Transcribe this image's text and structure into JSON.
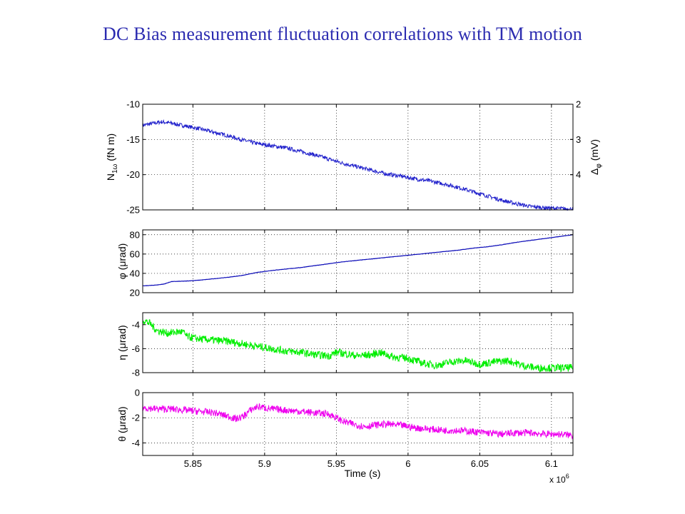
{
  "title": "DC Bias measurement  fluctuation correlations with TM motion",
  "chart_data": [
    {
      "type": "line",
      "ylabel": "N1ω (fN m)",
      "ylabel_parts": {
        "base": "N",
        "sub": "1ω",
        "unit": " (fN m)"
      },
      "ylabel_right": "Δφ (mV)",
      "ylabel_right_parts": {
        "base": "Δ",
        "sub": "φ",
        "unit": " (mV)"
      },
      "xlim": [
        5815000,
        6115000
      ],
      "ylim": [
        -25,
        -10
      ],
      "yticks": [
        -25,
        -20,
        -15,
        -10
      ],
      "ytick_labels": [
        "-25",
        "-20",
        "-15",
        "-10"
      ],
      "ylim_right": [
        2,
        5
      ],
      "yticks_right": [
        2,
        3,
        4
      ],
      "ytick_labels_right": [
        "2",
        "3",
        "4"
      ],
      "color": "#2222cc",
      "noise": 0.28,
      "grid": true,
      "series": [
        {
          "x": [
            5815000,
            5820000,
            5828000,
            5835000,
            5845000,
            5855000,
            5865000,
            5875000,
            5885000,
            5895000,
            5905000,
            5915000,
            5925000,
            5935000,
            5945000,
            5955000,
            5965000,
            5975000,
            5985000,
            5995000,
            6005000,
            6015000,
            6025000,
            6035000,
            6045000,
            6055000,
            6065000,
            6075000,
            6085000,
            6095000,
            6105000,
            6115000
          ],
          "y": [
            -13.0,
            -12.8,
            -12.5,
            -12.7,
            -13.1,
            -13.5,
            -14.0,
            -14.5,
            -15.1,
            -15.6,
            -15.9,
            -16.2,
            -16.7,
            -17.2,
            -17.8,
            -18.4,
            -18.9,
            -19.4,
            -19.9,
            -20.2,
            -20.6,
            -20.9,
            -21.3,
            -21.8,
            -22.4,
            -23.0,
            -23.6,
            -24.1,
            -24.5,
            -24.7,
            -24.8,
            -24.9
          ]
        }
      ]
    },
    {
      "type": "line",
      "ylabel": "φ (μrad)",
      "ylabel_parts": {
        "base": "φ (μrad)",
        "sub": "",
        "unit": ""
      },
      "xlim": [
        5815000,
        6115000
      ],
      "ylim": [
        20,
        85
      ],
      "yticks": [
        20,
        40,
        60,
        80
      ],
      "ytick_labels": [
        "20",
        "40",
        "60",
        "80"
      ],
      "color": "#0d0db8",
      "noise": 0.15,
      "grid": true,
      "series": [
        {
          "x": [
            5815000,
            5825000,
            5830000,
            5835000,
            5845000,
            5855000,
            5865000,
            5875000,
            5885000,
            5895000,
            5905000,
            5915000,
            5925000,
            5935000,
            5945000,
            5955000,
            5965000,
            5975000,
            5985000,
            5995000,
            6005000,
            6015000,
            6025000,
            6035000,
            6045000,
            6055000,
            6065000,
            6075000,
            6085000,
            6095000,
            6105000,
            6115000
          ],
          "y": [
            27,
            28,
            29,
            31.5,
            32,
            33,
            34.5,
            36,
            38,
            41,
            43,
            44.5,
            46,
            48,
            50,
            52,
            53.5,
            55,
            56.5,
            58,
            59.5,
            61,
            62.5,
            64,
            66,
            67.5,
            69.5,
            72,
            74,
            76,
            78,
            80
          ]
        }
      ]
    },
    {
      "type": "line",
      "ylabel": "η (μrad)",
      "ylabel_parts": {
        "base": "η (μrad)",
        "sub": "",
        "unit": ""
      },
      "xlim": [
        5815000,
        6115000
      ],
      "ylim": [
        -8,
        -3
      ],
      "yticks": [
        -8,
        -6,
        -4
      ],
      "ytick_labels": [
        "-8",
        "-6",
        "-4"
      ],
      "color": "#00ee00",
      "noise": 0.32,
      "grid": true,
      "series": [
        {
          "x": [
            5815000,
            5820000,
            5825000,
            5832000,
            5840000,
            5843000,
            5846000,
            5855000,
            5865000,
            5875000,
            5885000,
            5895000,
            5905000,
            5915000,
            5925000,
            5935000,
            5945000,
            5950000,
            5955000,
            5965000,
            5975000,
            5980000,
            5990000,
            6000000,
            6010000,
            6020000,
            6030000,
            6040000,
            6050000,
            6060000,
            6070000,
            6080000,
            6090000,
            6100000,
            6115000
          ],
          "y": [
            -3.6,
            -3.9,
            -4.5,
            -4.7,
            -4.6,
            -4.6,
            -5.0,
            -5.2,
            -5.3,
            -5.4,
            -5.6,
            -5.8,
            -6.0,
            -6.2,
            -6.3,
            -6.5,
            -6.6,
            -6.3,
            -6.4,
            -6.6,
            -6.5,
            -6.3,
            -6.7,
            -6.8,
            -7.2,
            -7.4,
            -7.1,
            -7.0,
            -7.3,
            -7.1,
            -7.0,
            -7.4,
            -7.6,
            -7.6,
            -7.6
          ]
        }
      ]
    },
    {
      "type": "line",
      "ylabel": "θ (μrad)",
      "ylabel_parts": {
        "base": "θ (μrad)",
        "sub": "",
        "unit": ""
      },
      "xlim": [
        5815000,
        6115000
      ],
      "ylim": [
        -5,
        0
      ],
      "yticks": [
        -4,
        -2,
        0
      ],
      "ytick_labels": [
        "-4",
        "-2",
        "0"
      ],
      "color": "#ee00ee",
      "noise": 0.28,
      "grid": true,
      "xticks": [
        5850000,
        5900000,
        5950000,
        6000000,
        6050000,
        6100000
      ],
      "xtick_labels": [
        "5.85",
        "5.9",
        "5.95",
        "6",
        "6.05",
        "6.1"
      ],
      "xlabel": "Time (s)",
      "x_multiplier": {
        "base": "x 10",
        "exp": "6"
      },
      "series": [
        {
          "x": [
            5815000,
            5825000,
            5835000,
            5845000,
            5855000,
            5865000,
            5875000,
            5880000,
            5885000,
            5890000,
            5895000,
            5900000,
            5905000,
            5915000,
            5925000,
            5935000,
            5945000,
            5950000,
            5955000,
            5965000,
            5970000,
            5975000,
            5985000,
            5995000,
            6005000,
            6015000,
            6025000,
            6035000,
            6045000,
            6055000,
            6065000,
            6075000,
            6085000,
            6095000,
            6105000,
            6115000
          ],
          "y": [
            -1.2,
            -1.3,
            -1.3,
            -1.4,
            -1.5,
            -1.6,
            -1.9,
            -2.1,
            -1.9,
            -1.4,
            -1.1,
            -1.2,
            -1.3,
            -1.4,
            -1.5,
            -1.6,
            -1.7,
            -2.0,
            -2.3,
            -2.6,
            -2.7,
            -2.6,
            -2.5,
            -2.6,
            -2.8,
            -2.9,
            -3.0,
            -3.0,
            -3.1,
            -3.2,
            -3.3,
            -3.2,
            -3.2,
            -3.3,
            -3.3,
            -3.4
          ]
        }
      ]
    }
  ]
}
